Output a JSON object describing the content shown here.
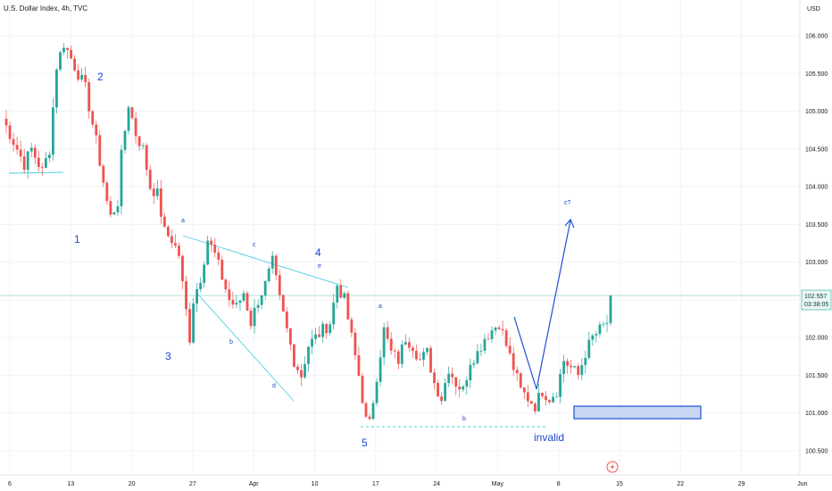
{
  "header": {
    "title": "U.S. Dollar Index, 4h, TVC"
  },
  "axis": {
    "currency": "USD"
  },
  "price_tag": {
    "price": "102.557",
    "countdown": "03:38:05"
  },
  "annotations": {
    "waves_major": [
      "1",
      "2",
      "3",
      "4",
      "5"
    ],
    "waves_minor": [
      "a",
      "b",
      "c",
      "d",
      "e",
      "a",
      "b",
      "c?"
    ],
    "invalid_label": "invalid"
  },
  "colors": {
    "up": "#26a69a",
    "down": "#ef5350",
    "trend": "#4dd0e1",
    "label": "#1848cc",
    "target_fill": "#c6d6f3",
    "target_border": "#1f4fd1"
  },
  "chart_data": {
    "type": "candlestick",
    "title": "U.S. Dollar Index, 4h, TVC",
    "ylabel": "USD",
    "ylim": [
      100.3,
      106.5
    ],
    "x_ticks": [
      "6",
      "13",
      "20",
      "27",
      "Apr",
      "10",
      "17",
      "24",
      "May",
      "8",
      "15",
      "22",
      "29",
      "Jun"
    ],
    "y_ticks": [
      "106.000",
      "105.500",
      "105.000",
      "104.500",
      "104.000",
      "103.500",
      "103.000",
      "102.500",
      "102.000",
      "101.500",
      "101.000",
      "100.500"
    ],
    "last_price": 102.557,
    "candle_anchors": [
      [
        0,
        104.9
      ],
      [
        3,
        104.6
      ],
      [
        6,
        104.3
      ],
      [
        8,
        104.5
      ],
      [
        11,
        104.2
      ],
      [
        13,
        104.5
      ],
      [
        15,
        105.6
      ],
      [
        17,
        105.9
      ],
      [
        19,
        105.7
      ],
      [
        21,
        105.5
      ],
      [
        23,
        105.3
      ],
      [
        26,
        104.6
      ],
      [
        29,
        103.8
      ],
      [
        30,
        103.6
      ],
      [
        32,
        103.8
      ],
      [
        33,
        104.4
      ],
      [
        35,
        105.1
      ],
      [
        37,
        104.7
      ],
      [
        39,
        104.5
      ],
      [
        41,
        104.0
      ],
      [
        43,
        103.9
      ],
      [
        45,
        103.4
      ],
      [
        47,
        103.3
      ],
      [
        49,
        103.1
      ],
      [
        50,
        102.7
      ],
      [
        52,
        102.0
      ],
      [
        53,
        102.5
      ],
      [
        55,
        102.8
      ],
      [
        57,
        103.3
      ],
      [
        59,
        103.1
      ],
      [
        61,
        102.8
      ],
      [
        63,
        102.5
      ],
      [
        65,
        102.4
      ],
      [
        67,
        102.6
      ],
      [
        69,
        102.2
      ],
      [
        71,
        102.5
      ],
      [
        73,
        102.7
      ],
      [
        75,
        103.0
      ],
      [
        77,
        102.5
      ],
      [
        79,
        102.1
      ],
      [
        81,
        101.7
      ],
      [
        83,
        101.5
      ],
      [
        85,
        101.9
      ],
      [
        87,
        102.0
      ],
      [
        89,
        102.1
      ],
      [
        91,
        102.2
      ],
      [
        93,
        102.7
      ],
      [
        95,
        102.5
      ],
      [
        97,
        102.0
      ],
      [
        99,
        101.5
      ],
      [
        101,
        100.9
      ],
      [
        102,
        100.85
      ],
      [
        104,
        101.5
      ],
      [
        106,
        102.1
      ],
      [
        108,
        101.8
      ],
      [
        110,
        101.7
      ],
      [
        112,
        102.0
      ],
      [
        114,
        101.9
      ],
      [
        116,
        101.7
      ],
      [
        118,
        101.8
      ],
      [
        120,
        101.4
      ],
      [
        122,
        101.2
      ],
      [
        124,
        101.6
      ],
      [
        126,
        101.4
      ],
      [
        128,
        101.3
      ],
      [
        130,
        101.7
      ],
      [
        132,
        101.8
      ],
      [
        134,
        102.0
      ],
      [
        136,
        102.1
      ],
      [
        138,
        102.2
      ],
      [
        140,
        101.9
      ],
      [
        142,
        101.6
      ],
      [
        144,
        101.3
      ],
      [
        146,
        101.2
      ],
      [
        148,
        101.1
      ],
      [
        150,
        101.3
      ],
      [
        152,
        101.2
      ],
      [
        154,
        101.3
      ],
      [
        156,
        101.7
      ],
      [
        158,
        101.6
      ],
      [
        160,
        101.5
      ],
      [
        162,
        101.8
      ],
      [
        164,
        102.0
      ],
      [
        166,
        102.1
      ],
      [
        168,
        102.2
      ],
      [
        169,
        102.557
      ]
    ]
  }
}
